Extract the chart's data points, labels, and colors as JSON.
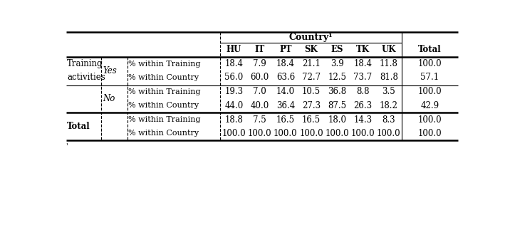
{
  "header_country": "Country¹",
  "header_cols": [
    "HU",
    "IT",
    "PT",
    "SK",
    "ES",
    "TK",
    "UK"
  ],
  "yes_row1": [
    "18.4",
    "7.9",
    "18.4",
    "21.1",
    "3.9",
    "18.4",
    "11.8",
    "100.0"
  ],
  "yes_row2": [
    "56.0",
    "60.0",
    "63.6",
    "72.7",
    "12.5",
    "73.7",
    "81.8",
    "57.1"
  ],
  "no_row1": [
    "19.3",
    "7.0",
    "14.0",
    "10.5",
    "36.8",
    "8.8",
    "3.5",
    "100.0"
  ],
  "no_row2": [
    "44.0",
    "40.0",
    "36.4",
    "27.3",
    "87.5",
    "26.3",
    "18.2",
    "42.9"
  ],
  "tot_row1": [
    "18.8",
    "7.5",
    "16.5",
    "16.5",
    "18.0",
    "14.3",
    "8.3",
    "100.0"
  ],
  "tot_row2": [
    "100.0",
    "100.0",
    "100.0",
    "100.0",
    "100.0",
    "100.0",
    "100.0",
    "100.0"
  ],
  "footnote": "¹"
}
